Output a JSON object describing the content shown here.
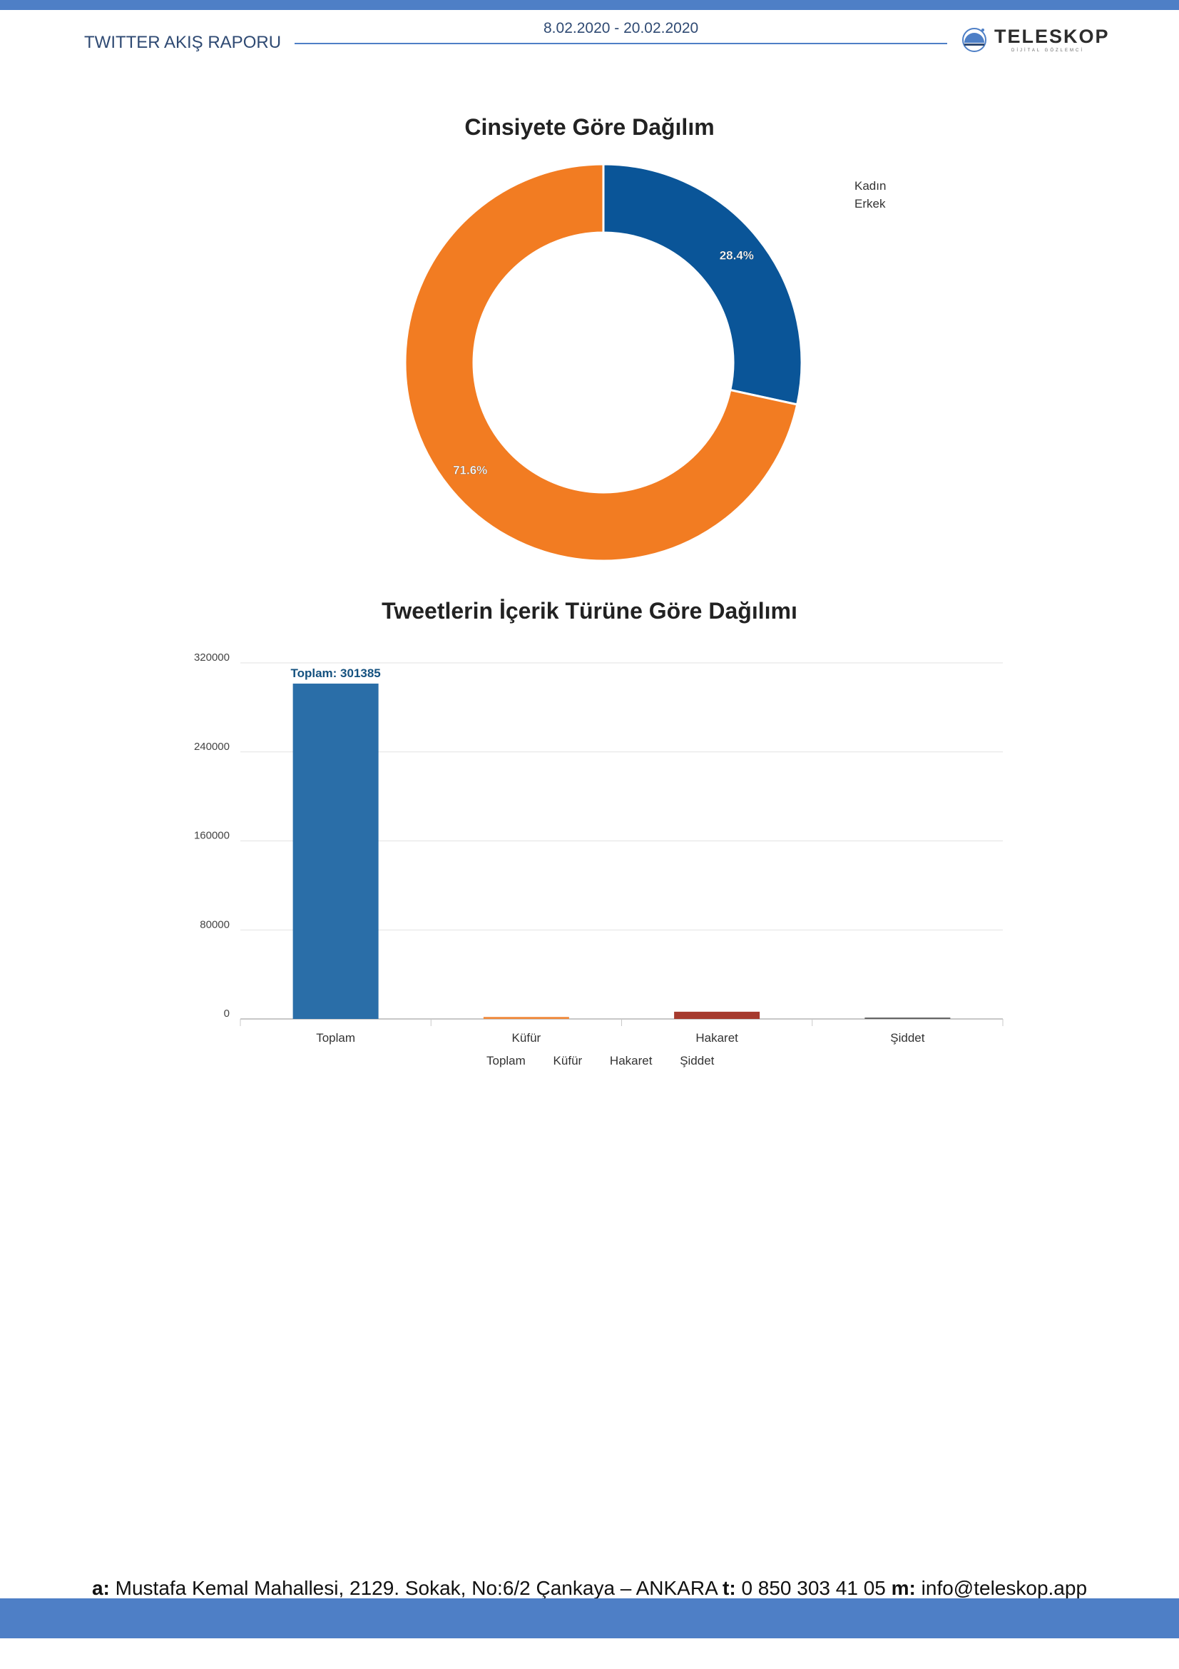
{
  "header": {
    "title": "TWITTER AKIŞ RAPORU",
    "date_range": "8.02.2020 - 20.02.2020",
    "logo_text": "TELESKOP",
    "logo_subtext": "DİJİTAL GÖZLEMCİ"
  },
  "colors": {
    "brand_bar": "#4e7fc6",
    "header_line": "#4e7fc6",
    "kadin": "#0a5598",
    "erkek": "#f27c22",
    "toplam": "#2a6ea8",
    "kufur": "#f08a3c",
    "hakaret": "#a63a2e",
    "siddet": "#666666"
  },
  "chart_data": [
    {
      "type": "pie",
      "title": "Cinsiyete Göre Dağılım",
      "labels": [
        "Kadın",
        "Erkek"
      ],
      "values": [
        28.4,
        71.6
      ],
      "value_labels": [
        "28.4%",
        "71.6%"
      ],
      "donut": true,
      "legend_position": "top-right"
    },
    {
      "type": "bar",
      "title": "Tweetlerin İçerik Türüne Göre Dağılımı",
      "categories": [
        "Toplam",
        "Küfür",
        "Hakaret",
        "Şiddet"
      ],
      "values": [
        301385,
        1800,
        6500,
        900
      ],
      "ylim": [
        0,
        320000
      ],
      "yticks": [
        "0",
        "80000",
        "160000",
        "240000",
        "320000"
      ],
      "data_label": "Toplam: 301385",
      "legend": [
        "Toplam",
        "Küfür",
        "Hakaret",
        "Şiddet"
      ],
      "legend_position": "bottom",
      "grid": true
    }
  ],
  "footer": {
    "a_label": "a:",
    "address": "Mustafa Kemal Mahallesi, 2129. Sokak, No:6/2 Çankaya – ANKARA",
    "t_label": "t:",
    "phone": "0 850 303 41 05",
    "m_label": "m:",
    "email": "info@teleskop.app"
  }
}
